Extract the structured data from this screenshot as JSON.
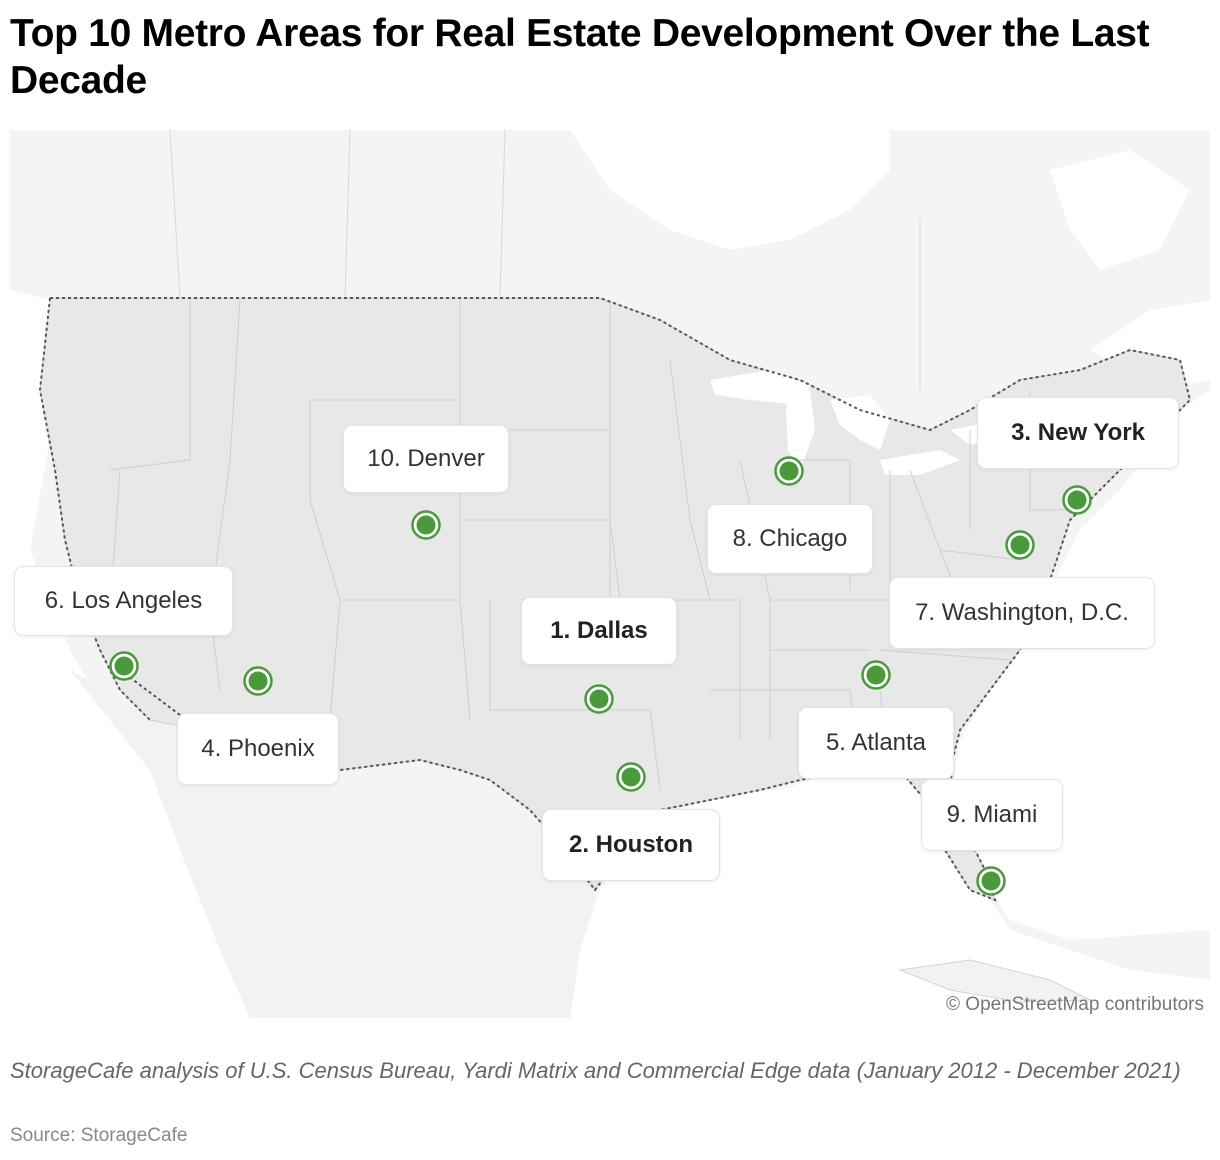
{
  "title": "Top 10 Metro Areas for Real Estate Development Over the Last Decade",
  "map": {
    "attribution": "© OpenStreetMap contributors",
    "marker_color": "#4a9a3b",
    "marker_ring_color": "#4a9a3b",
    "land_color": "#e8e8e8",
    "neighbor_color": "#f4f4f4",
    "water_color": "#ffffff"
  },
  "metros": [
    {
      "rank": 1,
      "name": "1. Dallas",
      "bold": true
    },
    {
      "rank": 2,
      "name": "2. Houston",
      "bold": true
    },
    {
      "rank": 3,
      "name": "3. New York",
      "bold": true
    },
    {
      "rank": 4,
      "name": "4. Phoenix",
      "bold": false
    },
    {
      "rank": 5,
      "name": "5. Atlanta",
      "bold": false
    },
    {
      "rank": 6,
      "name": "6. Los Angeles",
      "bold": false
    },
    {
      "rank": 7,
      "name": "7. Washington, D.C.",
      "bold": false
    },
    {
      "rank": 8,
      "name": "8. Chicago",
      "bold": false
    },
    {
      "rank": 9,
      "name": "9. Miami",
      "bold": false
    },
    {
      "rank": 10,
      "name": "10. Denver",
      "bold": false
    }
  ],
  "caption": "StorageCafe analysis of U.S. Census Bureau, Yardi Matrix and Commercial Edge data (January 2012 - December 2021)",
  "source": "Source: StorageCafe"
}
